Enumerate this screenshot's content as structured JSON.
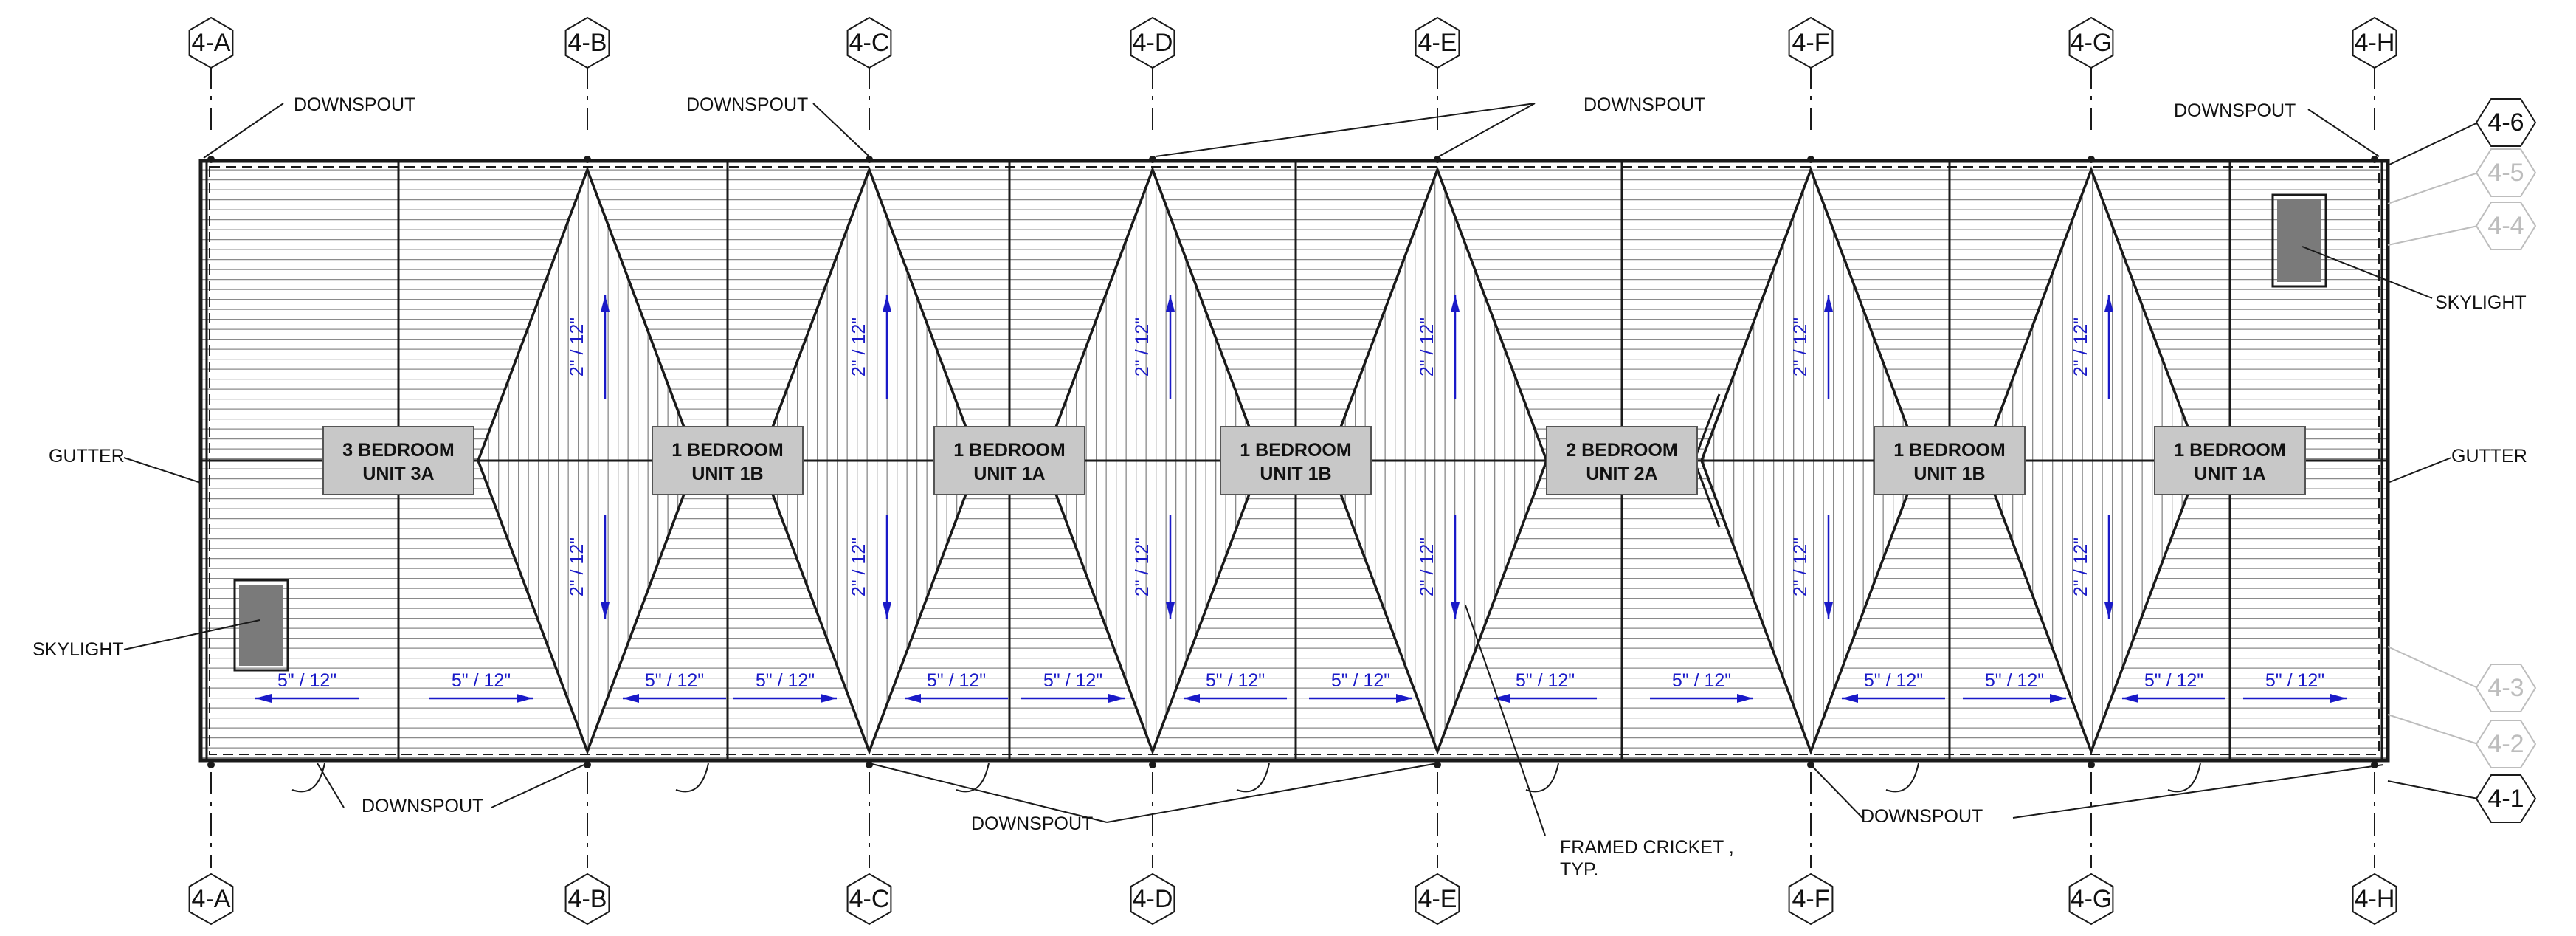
{
  "grid": {
    "columns": [
      "4-A",
      "4-B",
      "4-C",
      "4-D",
      "4-E",
      "4-F",
      "4-G",
      "4-H"
    ],
    "rows": [
      {
        "label": "4-6",
        "faded": false
      },
      {
        "label": "4-5",
        "faded": true
      },
      {
        "label": "4-4",
        "faded": true
      },
      {
        "label": "4-3",
        "faded": true
      },
      {
        "label": "4-2",
        "faded": true
      },
      {
        "label": "4-1",
        "faded": false
      }
    ]
  },
  "units": [
    {
      "line1": "3 BEDROOM",
      "line2": "UNIT 3A"
    },
    {
      "line1": "1 BEDROOM",
      "line2": "UNIT 1B"
    },
    {
      "line1": "1 BEDROOM",
      "line2": "UNIT 1A"
    },
    {
      "line1": "1 BEDROOM",
      "line2": "UNIT 1B"
    },
    {
      "line1": "2 BEDROOM",
      "line2": "UNIT 2A"
    },
    {
      "line1": "1 BEDROOM",
      "line2": "UNIT 1B"
    },
    {
      "line1": "1 BEDROOM",
      "line2": "UNIT 1A"
    }
  ],
  "slopes": {
    "roof": "5\" / 12\"",
    "cricket": "2\" / 12\""
  },
  "notes": {
    "downspout": "DOWNSPOUT",
    "gutter": "GUTTER",
    "skylight": "SKYLIGHT",
    "cricket_line1": "FRAMED CRICKET ,",
    "cricket_line2": "TYP."
  },
  "colors": {
    "line": "#1a1a1a",
    "hatch": "#8a8a8a",
    "unit_box": "#c8c8c8",
    "slope_text": "#1a1ac8",
    "faded_grid": "#bdbdbd",
    "skylight": "#7a7a7a"
  }
}
